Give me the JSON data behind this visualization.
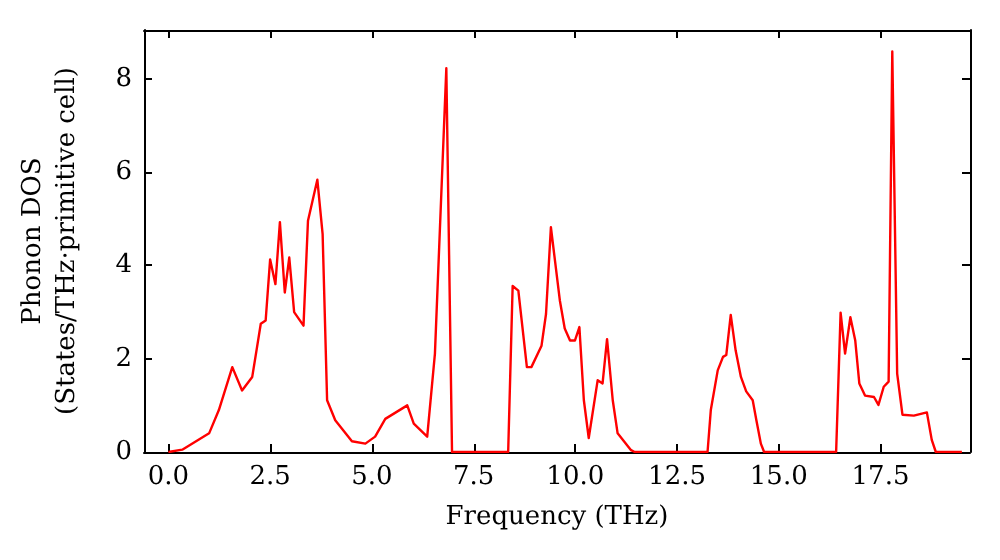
{
  "chart_data": {
    "type": "line",
    "xlabel": "Frequency (THz)",
    "ylabel": "Phonon DOS\n(States/THz·primitive cell)",
    "xlim": [
      -0.6,
      19.7
    ],
    "ylim": [
      0,
      9.05
    ],
    "xticks": [
      {
        "value": 0,
        "label": "0.0"
      },
      {
        "value": 2.5,
        "label": "2.5"
      },
      {
        "value": 5,
        "label": "5.0"
      },
      {
        "value": 7.5,
        "label": "7.5"
      },
      {
        "value": 10,
        "label": "10.0"
      },
      {
        "value": 12.5,
        "label": "12.5"
      },
      {
        "value": 15,
        "label": "15.0"
      },
      {
        "value": 17.5,
        "label": "17.5"
      }
    ],
    "yticks": [
      0,
      2,
      4,
      6,
      8
    ],
    "series": [
      {
        "color": "#ff0000",
        "x": [
          0,
          0.34,
          1.0,
          1.24,
          1.57,
          1.81,
          2.06,
          2.27,
          2.39,
          2.5,
          2.63,
          2.74,
          2.86,
          2.97,
          3.09,
          3.32,
          3.43,
          3.66,
          3.79,
          3.9,
          4.1,
          4.51,
          4.84,
          5.08,
          5.33,
          5.87,
          6.03,
          6.36,
          6.55,
          6.83,
          6.97,
          8.35,
          8.46,
          8.6,
          8.81,
          8.92,
          9.17,
          9.28,
          9.4,
          9.62,
          9.74,
          9.87,
          9.99,
          10.1,
          10.21,
          10.33,
          10.55,
          10.67,
          10.78,
          10.92,
          11.04,
          11.37,
          11.46,
          13.25,
          13.33,
          13.5,
          13.63,
          13.71,
          13.82,
          13.94,
          14.07,
          14.2,
          14.36,
          14.45,
          14.56,
          14.64,
          16.41,
          16.52,
          16.63,
          16.76,
          16.88,
          16.98,
          17.12,
          17.34,
          17.45,
          17.58,
          17.7,
          17.79,
          17.91,
          18.04,
          18.32,
          18.64,
          18.76,
          18.86,
          19.5
        ],
        "values": [
          0,
          0.05,
          0.4,
          0.9,
          1.82,
          1.32,
          1.61,
          2.75,
          2.82,
          4.13,
          3.6,
          4.93,
          3.42,
          4.17,
          3.0,
          2.71,
          4.96,
          5.84,
          4.67,
          1.11,
          0.68,
          0.23,
          0.18,
          0.33,
          0.71,
          1.0,
          0.61,
          0.33,
          2.11,
          8.23,
          0,
          0,
          3.56,
          3.46,
          1.82,
          1.82,
          2.28,
          2.96,
          4.82,
          3.25,
          2.65,
          2.39,
          2.39,
          2.68,
          1.11,
          0.3,
          1.54,
          1.47,
          2.42,
          1.11,
          0.4,
          0.04,
          0,
          0,
          0.9,
          1.75,
          2.04,
          2.08,
          2.94,
          2.18,
          1.61,
          1.3,
          1.11,
          0.68,
          0.18,
          0,
          0,
          2.99,
          2.11,
          2.89,
          2.39,
          1.47,
          1.21,
          1.18,
          1.01,
          1.4,
          1.51,
          8.59,
          1.68,
          0.8,
          0.78,
          0.85,
          0.26,
          0,
          0
        ]
      }
    ]
  }
}
